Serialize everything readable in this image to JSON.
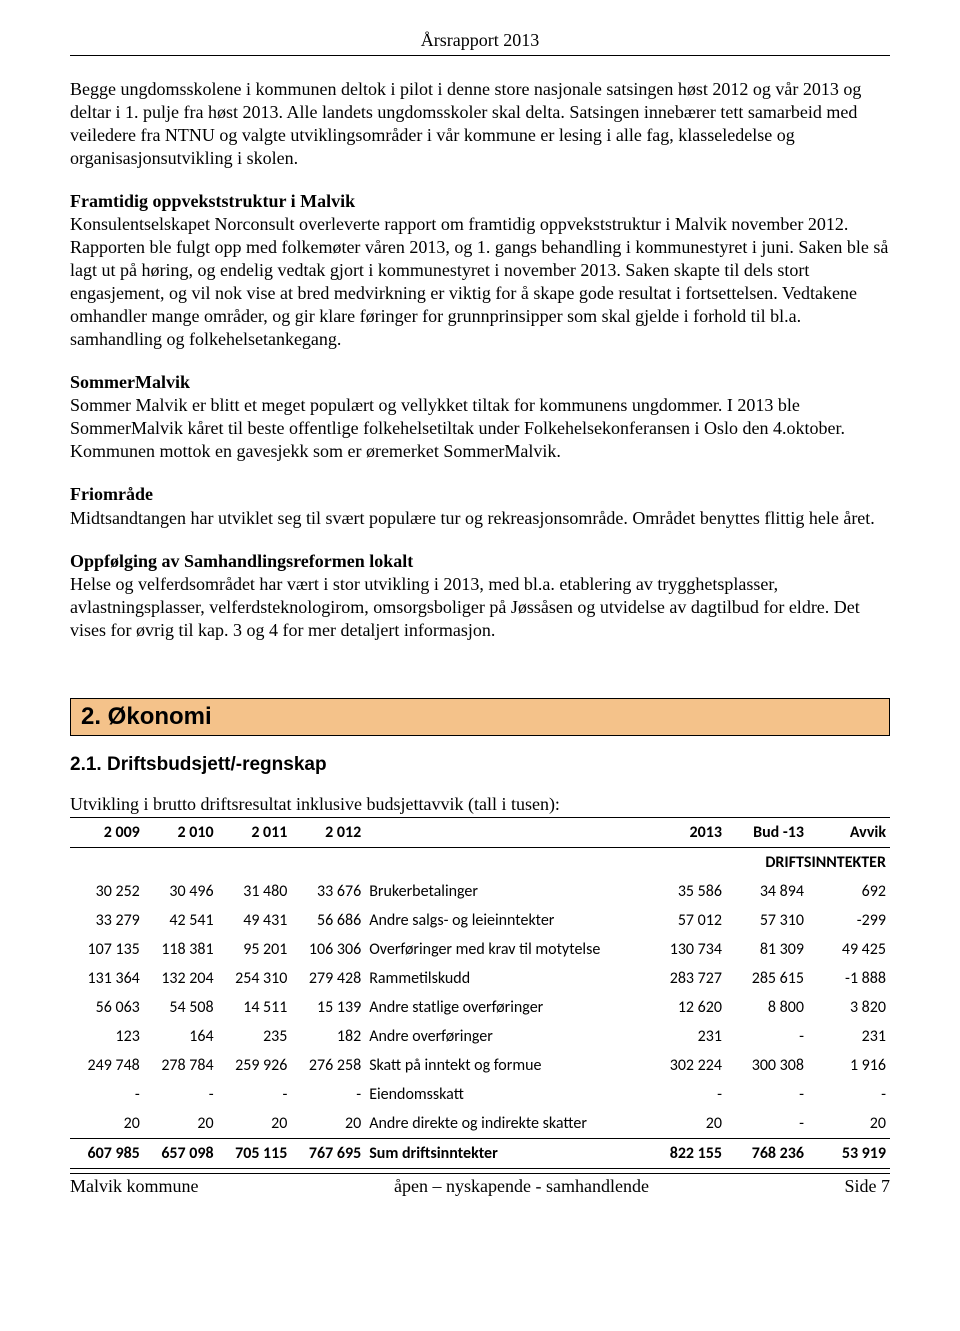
{
  "header": {
    "title": "Årsrapport 2013"
  },
  "paragraphs": {
    "p1": "Begge ungdomsskolene i kommunen deltok i pilot i denne store nasjonale satsingen høst 2012 og vår 2013 og deltar i 1. pulje fra høst 2013. Alle landets ungdomsskoler skal delta. Satsingen innebærer tett samarbeid med veiledere fra NTNU og valgte utviklingsområder i vår kommune er lesing i alle fag, klasseledelse og organisasjonsutvikling i skolen.",
    "h2": "Framtidig oppvekststruktur i Malvik",
    "p2": "Konsulentselskapet Norconsult overleverte rapport om framtidig oppvekststruktur i Malvik november 2012. Rapporten ble fulgt opp med folkemøter våren 2013, og 1. gangs behandling i kommunestyret i juni. Saken ble så lagt ut på høring, og endelig vedtak gjort i kommunestyret i november 2013. Saken skapte til dels stort engasjement, og vil nok vise at bred medvirkning er viktig for å skape gode resultat i fortsettelsen. Vedtakene omhandler mange områder, og gir klare føringer for grunnprinsipper som skal gjelde i forhold til bl.a. samhandling og folkehelsetankegang.",
    "h3": "SommerMalvik",
    "p3": "Sommer Malvik er blitt et meget populært og vellykket tiltak for kommunens ungdommer. I 2013 ble SommerMalvik kåret til beste offentlige folkehelsetiltak under Folkehelsekonferansen i Oslo den 4.oktober. Kommunen mottok en gavesjekk som er øremerket SommerMalvik.",
    "h4": "Friområde",
    "p4": "Midtsandtangen har utviklet seg til svært populære tur og rekreasjonsområde. Området benyttes flittig hele året.",
    "h5": "Oppfølging av Samhandlingsreformen lokalt",
    "p5": "Helse og velferdsområdet har vært i stor utvikling i 2013, med bl.a. etablering av trygghetsplasser, avlastningsplasser, velferdsteknologirom, omsorgsboliger på Jøssåsen og utvidelse av dagtilbud for eldre. Det vises for øvrig til kap. 3 og 4 for mer detaljert informasjon."
  },
  "section": {
    "title": "2. Økonomi",
    "subtitle": "2.1. Driftsbudsjett/-regnskap"
  },
  "table": {
    "intro": "Utvikling i brutto driftsresultat inklusive budsjettavvik (tall i tusen):",
    "columns": [
      "2 009",
      "2 010",
      "2 011",
      "2 012",
      "",
      "2013",
      "Bud -13",
      "Avvik"
    ],
    "section_label": "DRIFTSINNTEKTER",
    "rows": [
      {
        "v": [
          "30 252",
          "30 496",
          "31 480",
          "33 676",
          "Brukerbetalinger",
          "35 586",
          "34 894",
          "692"
        ]
      },
      {
        "v": [
          "33 279",
          "42 541",
          "49 431",
          "56 686",
          "Andre salgs- og leieinntekter",
          "57 012",
          "57 310",
          "-299"
        ]
      },
      {
        "v": [
          "107 135",
          "118 381",
          "95 201",
          "106 306",
          "Overføringer med krav til motytelse",
          "130 734",
          "81 309",
          "49 425"
        ]
      },
      {
        "v": [
          "131 364",
          "132 204",
          "254 310",
          "279 428",
          "Rammetilskudd",
          "283 727",
          "285 615",
          "-1 888"
        ]
      },
      {
        "v": [
          "56 063",
          "54 508",
          "14 511",
          "15 139",
          "Andre statlige overføringer",
          "12 620",
          "8 800",
          "3 820"
        ]
      },
      {
        "v": [
          "123",
          "164",
          "235",
          "182",
          "Andre overføringer",
          "231",
          "-",
          "231"
        ],
        "spacer": true
      },
      {
        "v": [
          "249 748",
          "278 784",
          "259 926",
          "276 258",
          "Skatt på inntekt og formue",
          "302 224",
          "300 308",
          "1 916"
        ]
      },
      {
        "v": [
          "-",
          "-",
          "-",
          "-",
          "Eiendomsskatt",
          "-",
          "-",
          "-"
        ]
      },
      {
        "v": [
          "20",
          "20",
          "20",
          "20",
          "Andre direkte og indirekte skatter",
          "20",
          "-",
          "20"
        ]
      }
    ],
    "sum": {
      "v": [
        "607 985",
        "657 098",
        "705 115",
        "767 695",
        "Sum driftsinntekter",
        "822 155",
        "768 236",
        "53 919"
      ]
    }
  },
  "footer": {
    "left": "Malvik kommune",
    "center": "åpen – nyskapende - samhandlende",
    "right": "Side 7"
  }
}
